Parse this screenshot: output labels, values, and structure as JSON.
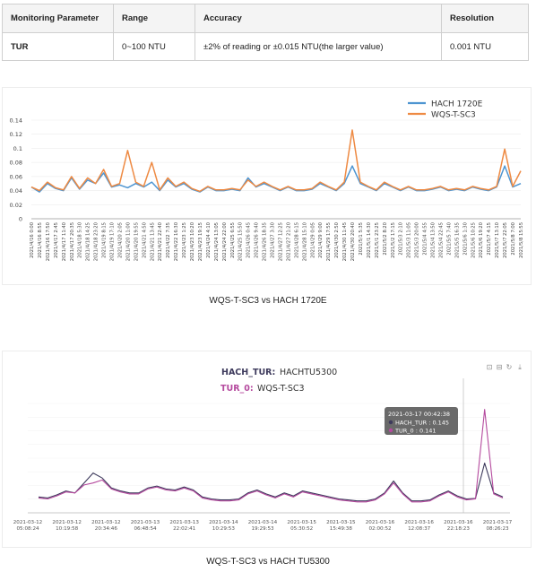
{
  "spec_table": {
    "headers": [
      "Monitoring Parameter",
      "Range",
      "Accuracy",
      "Resolution"
    ],
    "row": [
      "TUR",
      "0~100 NTU",
      "±2% of reading or ±0.015 NTU(the larger value)",
      "0.001 NTU"
    ]
  },
  "captions": {
    "first": "WQS-T-SC3 vs HACH 1720E",
    "second": "WQS-T-SC3 vs HACH TU5300"
  },
  "colors": {
    "hach1720e": "#4e95d1",
    "sc3_first": "#ee8a43",
    "hachtur": "#3d3a5c",
    "tur0": "#b54a9e"
  },
  "chart_data": [
    {
      "type": "line",
      "title": "",
      "xlabel": "",
      "ylabel": "",
      "ylim": [
        0,
        0.14
      ],
      "yticks": [
        "0",
        "0.02",
        "0.04",
        "0.06",
        "0.08",
        "0.1",
        "0.12",
        "0.14"
      ],
      "legend_position": "top-right",
      "x": [
        "2021/4/16 0:00",
        "2021/4/16 8:55",
        "2021/4/16 17:50",
        "2021/4/17 2:45",
        "2021/4/17 11:40",
        "2021/4/17 20:35",
        "2021/4/18 5:30",
        "2021/4/18 14:25",
        "2021/4/18 23:20",
        "2021/4/19 8:15",
        "2021/4/19 17:10",
        "2021/4/20 2:05",
        "2021/4/20 11:00",
        "2021/4/20 19:55",
        "2021/4/21 4:50",
        "2021/4/21 13:45",
        "2021/4/21 22:40",
        "2021/4/22 7:35",
        "2021/4/22 16:30",
        "2021/4/23 1:25",
        "2021/4/23 10:20",
        "2021/4/23 19:15",
        "2021/4/24 4:10",
        "2021/4/24 13:05",
        "2021/4/24 22:00",
        "2021/4/25 6:55",
        "2021/4/25 15:50",
        "2021/4/26 0:45",
        "2021/4/26 9:40",
        "2021/4/26 18:35",
        "2021/4/27 3:30",
        "2021/4/27 12:25",
        "2021/4/27 21:20",
        "2021/4/28 6:15",
        "2021/4/28 15:10",
        "2021/4/29 0:05",
        "2021/4/29 9:00",
        "2021/4/29 17:55",
        "2021/4/30 2:50",
        "2021/4/30 11:45",
        "2021/4/30 20:40",
        "2021/5/1 5:35",
        "2021/5/1 14:30",
        "2021/5/1 23:25",
        "2021/5/2 8:20",
        "2021/5/2 17:15",
        "2021/5/3 2:10",
        "2021/5/3 11:05",
        "2021/5/3 20:00",
        "2021/5/4 4:55",
        "2021/5/4 13:50",
        "2021/5/4 22:45",
        "2021/5/5 7:40",
        "2021/5/5 16:35",
        "2021/5/6 1:30",
        "2021/5/6 10:25",
        "2021/5/6 19:20",
        "2021/5/7 4:15",
        "2021/5/7 13:10",
        "2021/5/7 22:05",
        "2021/5/8 7:00",
        "2021/5/8 15:55"
      ],
      "series": [
        {
          "name": "HACH 1720E",
          "values": [
            0.045,
            0.038,
            0.05,
            0.043,
            0.04,
            0.058,
            0.042,
            0.055,
            0.05,
            0.065,
            0.045,
            0.048,
            0.044,
            0.05,
            0.045,
            0.052,
            0.04,
            0.055,
            0.045,
            0.05,
            0.042,
            0.038,
            0.045,
            0.04,
            0.04,
            0.042,
            0.04,
            0.058,
            0.045,
            0.05,
            0.045,
            0.04,
            0.045,
            0.04,
            0.04,
            0.042,
            0.05,
            0.045,
            0.04,
            0.05,
            0.075,
            0.05,
            0.045,
            0.04,
            0.05,
            0.045,
            0.04,
            0.045,
            0.04,
            0.04,
            0.042,
            0.045,
            0.04,
            0.042,
            0.04,
            0.045,
            0.042,
            0.04,
            0.045,
            0.075,
            0.045,
            0.05
          ]
        },
        {
          "name": "WQS-T-SC3",
          "values": [
            0.045,
            0.04,
            0.052,
            0.044,
            0.041,
            0.06,
            0.043,
            0.058,
            0.05,
            0.07,
            0.046,
            0.05,
            0.097,
            0.052,
            0.046,
            0.08,
            0.041,
            0.058,
            0.046,
            0.052,
            0.043,
            0.039,
            0.046,
            0.041,
            0.041,
            0.043,
            0.041,
            0.055,
            0.046,
            0.052,
            0.046,
            0.041,
            0.046,
            0.041,
            0.041,
            0.043,
            0.052,
            0.046,
            0.041,
            0.052,
            0.126,
            0.052,
            0.046,
            0.041,
            0.052,
            0.046,
            0.041,
            0.046,
            0.041,
            0.041,
            0.043,
            0.046,
            0.041,
            0.043,
            0.041,
            0.046,
            0.043,
            0.041,
            0.046,
            0.099,
            0.046,
            0.068
          ]
        }
      ]
    },
    {
      "type": "line",
      "title": "",
      "legend": {
        "first_key": "HACH_TUR:",
        "first_name": "HACHTU5300",
        "second_key": "TUR_0:",
        "second_name": "WQS-T-SC3"
      },
      "tooltip": {
        "time": "2021-03-17 00:42:38",
        "line1": "HACH_TUR : 0.145",
        "line2": "TUR_0 : 0.141"
      },
      "x_ticks": [
        [
          "2021-03-12",
          "05:08:24"
        ],
        [
          "2021-03-12",
          "10:19:58"
        ],
        [
          "2021-03-12",
          "20:34:46"
        ],
        [
          "2021-03-13",
          "06:48:54"
        ],
        [
          "2021-03-13",
          "22:02:41"
        ],
        [
          "2021-03-14",
          "10:29:53"
        ],
        [
          "2021-03-14",
          "19:29:53"
        ],
        [
          "2021-03-15",
          "05:30:52"
        ],
        [
          "2021-03-15",
          "15:49:38"
        ],
        [
          "2021-03-16",
          "02:00:52"
        ],
        [
          "2021-03-16",
          "12:08:37"
        ],
        [
          "2021-03-16",
          "22:18:23"
        ],
        [
          "2021-03-17",
          "08:26:23"
        ]
      ],
      "series": [
        {
          "name": "HACH_TUR",
          "values": [
            0.16,
            0.15,
            0.18,
            0.22,
            0.2,
            0.3,
            0.4,
            0.35,
            0.25,
            0.22,
            0.2,
            0.2,
            0.25,
            0.27,
            0.24,
            0.23,
            0.26,
            0.23,
            0.16,
            0.14,
            0.13,
            0.13,
            0.14,
            0.2,
            0.23,
            0.19,
            0.16,
            0.2,
            0.17,
            0.22,
            0.2,
            0.18,
            0.16,
            0.14,
            0.13,
            0.12,
            0.12,
            0.14,
            0.2,
            0.32,
            0.2,
            0.12,
            0.12,
            0.13,
            0.18,
            0.22,
            0.17,
            0.14,
            0.145,
            0.5,
            0.2,
            0.16
          ]
        },
        {
          "name": "TUR_0",
          "values": [
            0.15,
            0.14,
            0.17,
            0.21,
            0.2,
            0.28,
            0.3,
            0.33,
            0.24,
            0.21,
            0.19,
            0.19,
            0.24,
            0.26,
            0.23,
            0.22,
            0.25,
            0.22,
            0.15,
            0.13,
            0.12,
            0.12,
            0.13,
            0.19,
            0.22,
            0.18,
            0.15,
            0.19,
            0.16,
            0.21,
            0.19,
            0.17,
            0.15,
            0.13,
            0.12,
            0.11,
            0.11,
            0.13,
            0.19,
            0.3,
            0.19,
            0.11,
            0.11,
            0.12,
            0.17,
            0.21,
            0.16,
            0.13,
            0.141,
            1.04,
            0.19,
            0.15
          ]
        }
      ]
    }
  ]
}
